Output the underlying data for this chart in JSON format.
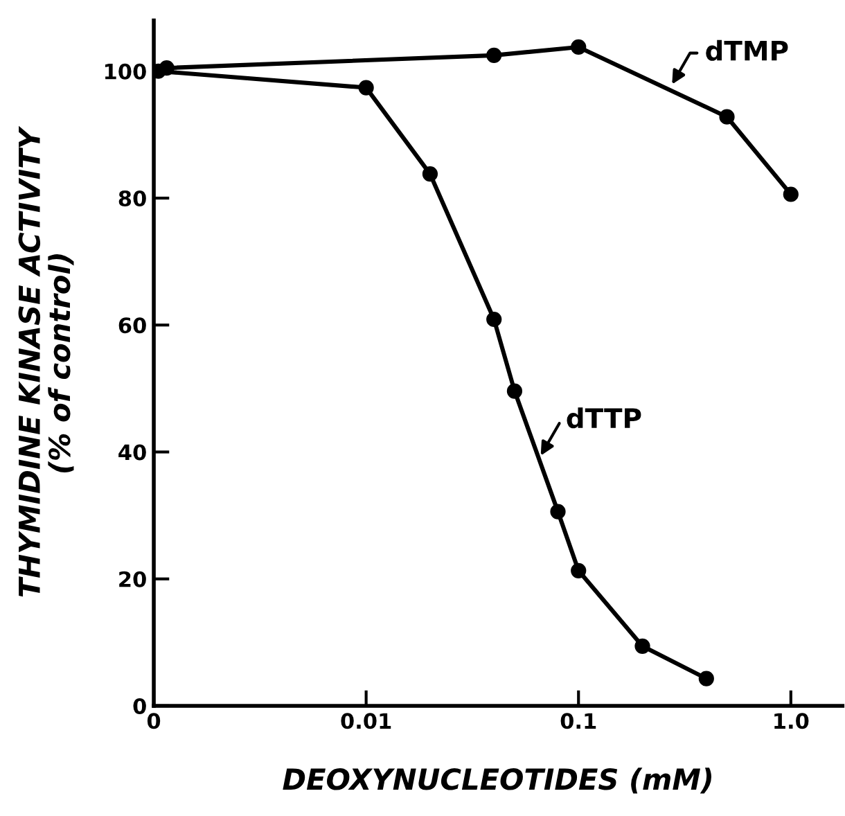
{
  "chart_data": {
    "type": "line",
    "xlabel": "DEOXYNUCLEOTIDES (mM)",
    "ylabel": "THYMIDINE KINASE ACTIVITY\n(% of control)",
    "log": "x",
    "xlim": [
      0.001,
      1.75
    ],
    "xticks": [
      {
        "value": 0.001,
        "label": "0"
      },
      0.01,
      0.1,
      {
        "value": 1,
        "label": "1.0"
      }
    ],
    "ylim": [
      0,
      108
    ],
    "yticks": [
      0,
      20,
      40,
      60,
      80,
      100
    ],
    "grid": false,
    "legend": false,
    "marker": "circle",
    "line_style": "solid",
    "series": [
      {
        "color": "#000000",
        "x": [
          0.00115,
          0.04,
          0.1,
          0.5,
          1.0
        ],
        "values": [
          100.5,
          102.5,
          103.8,
          92.8,
          80.6
        ]
      },
      {
        "color": "#000000",
        "x": [
          0.00105,
          0.01,
          0.02,
          0.04,
          0.05,
          0.08,
          0.1,
          0.2,
          0.4
        ],
        "values": [
          100,
          97.4,
          83.8,
          60.9,
          49.6,
          30.6,
          21.3,
          9.4,
          4.3
        ]
      }
    ],
    "annotations": [
      {
        "text": "dTMP",
        "x": 0.27,
        "y": 97.4
      },
      {
        "text": "dTTP",
        "x": 0.065,
        "y": 38.9
      }
    ]
  }
}
